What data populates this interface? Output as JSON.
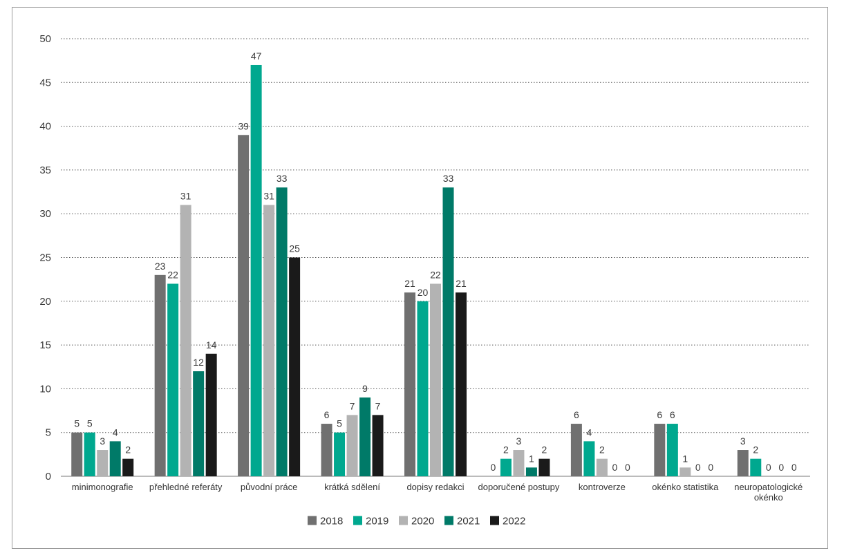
{
  "chart_data": {
    "type": "bar",
    "ylim": [
      0,
      50
    ],
    "yticks": [
      0,
      5,
      10,
      15,
      20,
      25,
      30,
      35,
      40,
      45,
      50
    ],
    "grid": true,
    "legend_position": "bottom",
    "categories": [
      [
        "minimonografie"
      ],
      [
        "přehledné referáty"
      ],
      [
        "původní práce"
      ],
      [
        "krátká sdělení"
      ],
      [
        "dopisy redakci"
      ],
      [
        "doporučené postupy"
      ],
      [
        "kontroverze"
      ],
      [
        "okénko statistika"
      ],
      [
        "neuropatologické",
        "okénko"
      ]
    ],
    "series": [
      {
        "name": "2018",
        "color": "#707070",
        "values": [
          5,
          23,
          39,
          6,
          21,
          0,
          6,
          6,
          3
        ]
      },
      {
        "name": "2019",
        "color": "#00a88f",
        "values": [
          5,
          22,
          47,
          5,
          20,
          2,
          4,
          6,
          2
        ]
      },
      {
        "name": "2020",
        "color": "#b3b3b3",
        "values": [
          3,
          31,
          31,
          7,
          22,
          3,
          2,
          1,
          0
        ]
      },
      {
        "name": "2021",
        "color": "#007a68",
        "values": [
          4,
          12,
          33,
          9,
          33,
          1,
          0,
          0,
          0
        ]
      },
      {
        "name": "2022",
        "color": "#1a1a1a",
        "values": [
          2,
          14,
          25,
          7,
          21,
          2,
          0,
          0,
          0
        ]
      }
    ]
  }
}
